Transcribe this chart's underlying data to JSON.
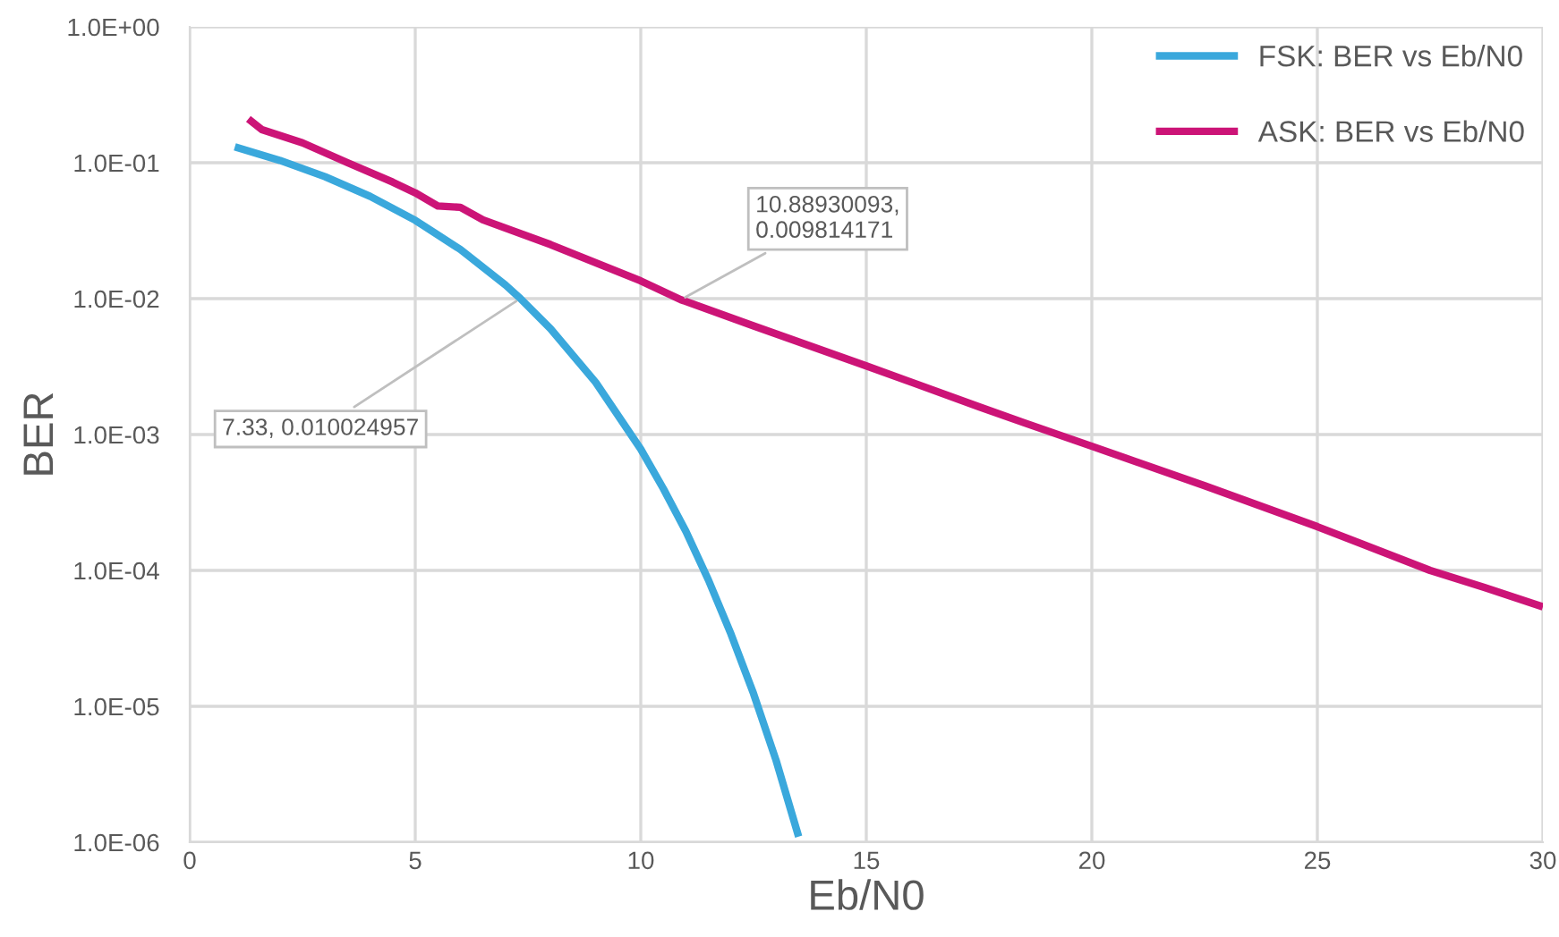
{
  "chart_data": {
    "type": "line",
    "xlabel": "Eb/N0",
    "ylabel": "BER",
    "log": "y",
    "xlim": [
      0,
      30
    ],
    "xticks": [
      0,
      5,
      10,
      15,
      20,
      25,
      30
    ],
    "ylim": [
      1e-06,
      1
    ],
    "yticks": [
      {
        "value": 1e-06,
        "label": "1.0E-06"
      },
      {
        "value": 1e-05,
        "label": "1.0E-05"
      },
      {
        "value": 0.0001,
        "label": "1.0E-04"
      },
      {
        "value": 0.001,
        "label": "1.0E-03"
      },
      {
        "value": 0.01,
        "label": "1.0E-02"
      },
      {
        "value": 0.1,
        "label": "1.0E-01"
      },
      {
        "value": 1,
        "label": "1.0E+00"
      }
    ],
    "grid": true,
    "legend": "top right",
    "marker": "none",
    "line_style": "solid",
    "series": [
      {
        "name": "FSK: BER vs Eb/N0",
        "color": "#3aa8dc",
        "x": [
          1,
          2,
          3,
          4,
          5,
          6,
          7,
          7.33,
          8,
          9,
          10,
          10.5,
          11,
          11.5,
          12,
          12.5,
          13,
          13.5
        ],
        "values": [
          0.131,
          0.104,
          0.0789,
          0.0565,
          0.0377,
          0.023,
          0.0126,
          0.010024957,
          0.006,
          0.00242,
          0.00078,
          0.0004,
          0.000194,
          8.5e-05,
          3.4e-05,
          1.24e-05,
          4e-06,
          1.1e-06
        ]
      },
      {
        "name": "ASK: BER vs Eb/N0",
        "color": "#cc1477",
        "x": [
          1.3,
          1.6,
          2.5,
          3.5,
          4.5,
          5,
          5.5,
          6,
          6.5,
          8,
          10,
          10.88930093,
          12.5,
          15,
          17.5,
          18.5,
          20,
          22.5,
          25,
          27.5,
          28.7,
          30
        ],
        "values": [
          0.21,
          0.175,
          0.14,
          0.1,
          0.072,
          0.06,
          0.048,
          0.047,
          0.038,
          0.025,
          0.0135,
          0.009814171,
          0.0063,
          0.0032,
          0.0016,
          0.00122,
          0.00082,
          0.00042,
          0.00021,
          0.0001,
          7.5e-05,
          5.4e-05
        ]
      }
    ],
    "annotations": [
      {
        "text": "7.33, 0.010024957",
        "x": 7.33,
        "y": 0.010024957
      },
      {
        "text": "10.88930093,\n0.009814171",
        "x": 10.88930093,
        "y": 0.009814171
      }
    ]
  }
}
